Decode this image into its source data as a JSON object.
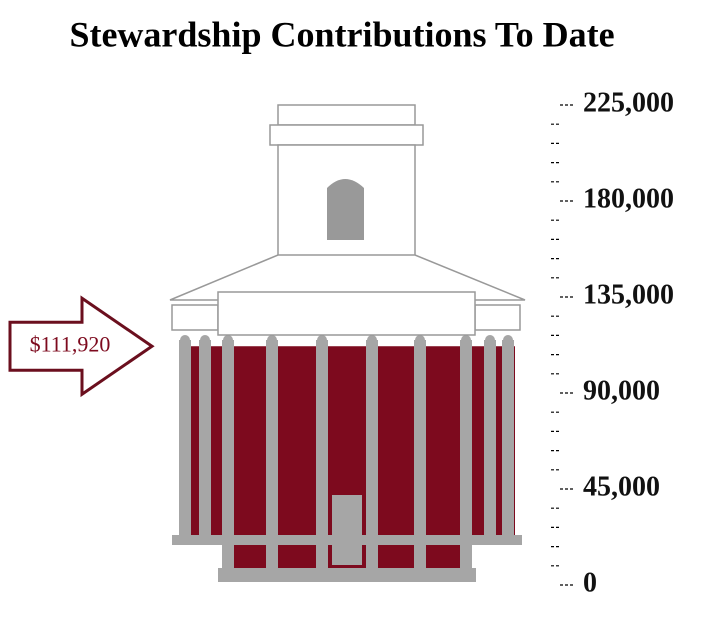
{
  "chart_data": {
    "type": "gauge",
    "title": "Stewardship Contributions To Date",
    "value": 111920,
    "value_label": "$111,920",
    "color": "#7d0a1e",
    "ylim": [
      0,
      225000
    ],
    "yticks": [
      0,
      {
        "value": 45000,
        "label": "45,000"
      },
      {
        "value": 90000,
        "label": "90,000"
      },
      {
        "value": 135000,
        "label": "135,000"
      },
      {
        "value": 180000,
        "label": "180,000"
      },
      {
        "value": 225000,
        "label": "225,000"
      }
    ],
    "minor_yticks": [
      9000,
      18000,
      27000,
      36000,
      54000,
      63000,
      72000,
      81000,
      99000,
      108000,
      117000,
      126000,
      144000,
      153000,
      162000,
      171000,
      189000,
      198000,
      207000,
      216000
    ]
  }
}
